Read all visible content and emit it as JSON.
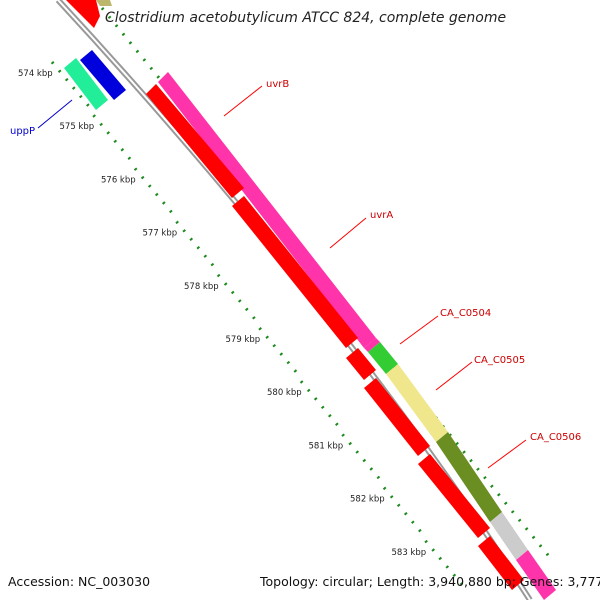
{
  "title": "Clostridium acetobutylicum ATCC 824, complete genome",
  "accession": "Accession: NC_003030",
  "topology": "Topology: circular; Length: 3,940,880 bp; Genes: 3,777",
  "colors": {
    "backbone": "#999999",
    "ruler_dots": "#1c8a1c",
    "gene_label": "#cc0000",
    "uppP_label": "#0000cc",
    "uvrB": "#ff33aa",
    "uvrA": "#ff33aa",
    "CA_C0504": "#33cc33",
    "CA_C0505": "#f0e68c",
    "CA_C0506": "#6b8e23",
    "uppP": "#22ee99",
    "reverse_genes": "#ff0000"
  },
  "ticks": [
    {
      "label": "574 kbp"
    },
    {
      "label": "575 kbp"
    },
    {
      "label": "576 kbp"
    },
    {
      "label": "577 kbp"
    },
    {
      "label": "578 kbp"
    },
    {
      "label": "579 kbp"
    },
    {
      "label": "580 kbp"
    },
    {
      "label": "581 kbp"
    },
    {
      "label": "582 kbp"
    },
    {
      "label": "583 kbp"
    }
  ],
  "gene_labels": {
    "uvrB": "uvrB",
    "uvrA": "uvrA",
    "CA_C0504": "CA_C0504",
    "CA_C0505": "CA_C0505",
    "CA_C0506": "CA_C0506",
    "uppP": "uppP"
  }
}
